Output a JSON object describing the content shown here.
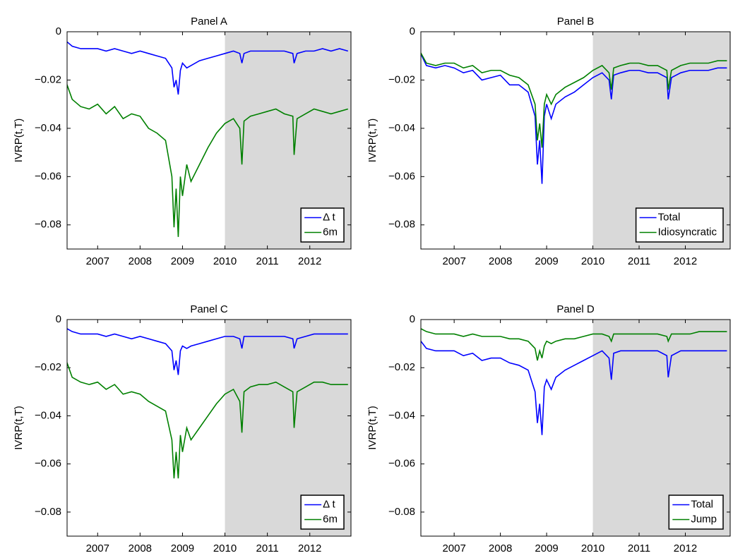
{
  "chart_data": [
    {
      "type": "line",
      "title": "Panel A",
      "ylabel": "IVRP(t,T)",
      "x": [
        2006.2,
        2006.4,
        2006.6,
        2006.8,
        2007.0,
        2007.2,
        2007.4,
        2007.6,
        2007.8,
        2008.0,
        2008.2,
        2008.4,
        2008.6,
        2008.75,
        2008.8,
        2008.85,
        2008.9,
        2008.95,
        2009.0,
        2009.1,
        2009.2,
        2009.4,
        2009.6,
        2009.8,
        2010.0,
        2010.2,
        2010.35,
        2010.4,
        2010.45,
        2010.6,
        2010.8,
        2011.0,
        2011.2,
        2011.4,
        2011.6,
        2011.63,
        2011.7,
        2011.9,
        2012.1,
        2012.3,
        2012.5,
        2012.7,
        2012.9
      ],
      "series": [
        {
          "name": "Δ t",
          "color": "#0000ff",
          "values": [
            -0.003,
            -0.006,
            -0.007,
            -0.007,
            -0.007,
            -0.008,
            -0.007,
            -0.008,
            -0.009,
            -0.008,
            -0.009,
            -0.01,
            -0.011,
            -0.015,
            -0.023,
            -0.02,
            -0.026,
            -0.016,
            -0.013,
            -0.015,
            -0.014,
            -0.012,
            -0.011,
            -0.01,
            -0.009,
            -0.008,
            -0.009,
            -0.013,
            -0.009,
            -0.008,
            -0.008,
            -0.008,
            -0.008,
            -0.008,
            -0.009,
            -0.013,
            -0.009,
            -0.008,
            -0.008,
            -0.007,
            -0.008,
            -0.007,
            -0.008
          ]
        },
        {
          "name": "6m",
          "color": "#008000",
          "values": [
            -0.018,
            -0.028,
            -0.031,
            -0.032,
            -0.03,
            -0.034,
            -0.031,
            -0.036,
            -0.034,
            -0.035,
            -0.04,
            -0.042,
            -0.045,
            -0.06,
            -0.081,
            -0.065,
            -0.085,
            -0.06,
            -0.068,
            -0.055,
            -0.062,
            -0.055,
            -0.048,
            -0.042,
            -0.038,
            -0.036,
            -0.04,
            -0.055,
            -0.037,
            -0.035,
            -0.034,
            -0.033,
            -0.032,
            -0.034,
            -0.035,
            -0.051,
            -0.036,
            -0.034,
            -0.032,
            -0.033,
            -0.034,
            -0.033,
            -0.032
          ]
        }
      ],
      "xlim": [
        2006.28,
        2012.97
      ],
      "ylim": [
        -0.09,
        0
      ],
      "xticks": [
        2007,
        2008,
        2009,
        2010,
        2011,
        2012
      ],
      "yticks": [
        0,
        {
          "value": -0.02,
          "label": "−0.02"
        },
        {
          "value": -0.04,
          "label": "−0.04"
        },
        {
          "value": -0.06,
          "label": "−0.06"
        },
        {
          "value": -0.08,
          "label": "−0.08"
        }
      ],
      "shade_from": 2010,
      "shade_color": "#d9d9d9",
      "legend": "lower right"
    },
    {
      "type": "line",
      "title": "Panel B",
      "ylabel": "IVRP(t,T)",
      "x": [
        2006.2,
        2006.4,
        2006.6,
        2006.8,
        2007.0,
        2007.2,
        2007.4,
        2007.6,
        2007.8,
        2008.0,
        2008.2,
        2008.4,
        2008.6,
        2008.75,
        2008.8,
        2008.85,
        2008.9,
        2008.95,
        2009.0,
        2009.1,
        2009.2,
        2009.4,
        2009.6,
        2009.8,
        2010.0,
        2010.2,
        2010.35,
        2010.4,
        2010.45,
        2010.6,
        2010.8,
        2011.0,
        2011.2,
        2011.4,
        2011.6,
        2011.63,
        2011.7,
        2011.9,
        2012.1,
        2012.3,
        2012.5,
        2012.7,
        2012.9
      ],
      "series": [
        {
          "name": "Total",
          "color": "#0000ff",
          "values": [
            -0.006,
            -0.014,
            -0.015,
            -0.014,
            -0.015,
            -0.017,
            -0.016,
            -0.02,
            -0.019,
            -0.018,
            -0.022,
            -0.022,
            -0.025,
            -0.035,
            -0.055,
            -0.045,
            -0.063,
            -0.035,
            -0.03,
            -0.036,
            -0.03,
            -0.027,
            -0.025,
            -0.022,
            -0.019,
            -0.017,
            -0.02,
            -0.028,
            -0.018,
            -0.017,
            -0.016,
            -0.016,
            -0.017,
            -0.017,
            -0.019,
            -0.028,
            -0.019,
            -0.017,
            -0.016,
            -0.016,
            -0.016,
            -0.015,
            -0.015
          ]
        },
        {
          "name": "Idiosyncratic",
          "color": "#008000",
          "values": [
            -0.006,
            -0.013,
            -0.014,
            -0.013,
            -0.013,
            -0.015,
            -0.014,
            -0.017,
            -0.016,
            -0.016,
            -0.018,
            -0.019,
            -0.022,
            -0.03,
            -0.045,
            -0.038,
            -0.048,
            -0.03,
            -0.026,
            -0.03,
            -0.026,
            -0.023,
            -0.021,
            -0.019,
            -0.016,
            -0.014,
            -0.017,
            -0.024,
            -0.015,
            -0.014,
            -0.013,
            -0.013,
            -0.014,
            -0.014,
            -0.016,
            -0.024,
            -0.016,
            -0.014,
            -0.013,
            -0.013,
            -0.013,
            -0.012,
            -0.012
          ]
        }
      ],
      "xlim": [
        2006.28,
        2012.97
      ],
      "ylim": [
        -0.09,
        0
      ],
      "xticks": [
        2007,
        2008,
        2009,
        2010,
        2011,
        2012
      ],
      "yticks": [
        0,
        {
          "value": -0.02,
          "label": "−0.02"
        },
        {
          "value": -0.04,
          "label": "−0.04"
        },
        {
          "value": -0.06,
          "label": "−0.06"
        },
        {
          "value": -0.08,
          "label": "−0.08"
        }
      ],
      "shade_from": 2010,
      "shade_color": "#d9d9d9",
      "legend": "lower right"
    },
    {
      "type": "line",
      "title": "Panel C",
      "ylabel": "IVRP(t,T)",
      "x": [
        2006.2,
        2006.4,
        2006.6,
        2006.8,
        2007.0,
        2007.2,
        2007.4,
        2007.6,
        2007.8,
        2008.0,
        2008.2,
        2008.4,
        2008.6,
        2008.75,
        2008.8,
        2008.85,
        2008.9,
        2008.95,
        2009.0,
        2009.1,
        2009.2,
        2009.4,
        2009.6,
        2009.8,
        2010.0,
        2010.2,
        2010.35,
        2010.4,
        2010.45,
        2010.6,
        2010.8,
        2011.0,
        2011.2,
        2011.4,
        2011.6,
        2011.63,
        2011.7,
        2011.9,
        2012.1,
        2012.3,
        2012.5,
        2012.7,
        2012.9
      ],
      "series": [
        {
          "name": "Δ t",
          "color": "#0000ff",
          "values": [
            -0.003,
            -0.005,
            -0.006,
            -0.006,
            -0.006,
            -0.007,
            -0.006,
            -0.007,
            -0.008,
            -0.007,
            -0.008,
            -0.009,
            -0.01,
            -0.013,
            -0.021,
            -0.017,
            -0.023,
            -0.013,
            -0.011,
            -0.012,
            -0.011,
            -0.01,
            -0.009,
            -0.008,
            -0.007,
            -0.007,
            -0.008,
            -0.012,
            -0.007,
            -0.007,
            -0.007,
            -0.007,
            -0.007,
            -0.007,
            -0.008,
            -0.012,
            -0.008,
            -0.007,
            -0.006,
            -0.006,
            -0.006,
            -0.006,
            -0.006
          ]
        },
        {
          "name": "6m",
          "color": "#008000",
          "values": [
            -0.014,
            -0.024,
            -0.026,
            -0.027,
            -0.026,
            -0.029,
            -0.027,
            -0.031,
            -0.03,
            -0.031,
            -0.034,
            -0.036,
            -0.038,
            -0.05,
            -0.066,
            -0.055,
            -0.066,
            -0.048,
            -0.055,
            -0.045,
            -0.05,
            -0.045,
            -0.04,
            -0.035,
            -0.031,
            -0.029,
            -0.034,
            -0.047,
            -0.03,
            -0.028,
            -0.027,
            -0.027,
            -0.026,
            -0.028,
            -0.03,
            -0.045,
            -0.03,
            -0.028,
            -0.026,
            -0.026,
            -0.027,
            -0.027,
            -0.027
          ]
        }
      ],
      "xlim": [
        2006.28,
        2012.97
      ],
      "ylim": [
        -0.09,
        0
      ],
      "xticks": [
        2007,
        2008,
        2009,
        2010,
        2011,
        2012
      ],
      "yticks": [
        0,
        {
          "value": -0.02,
          "label": "−0.02"
        },
        {
          "value": -0.04,
          "label": "−0.04"
        },
        {
          "value": -0.06,
          "label": "−0.06"
        },
        {
          "value": -0.08,
          "label": "−0.08"
        }
      ],
      "shade_from": 2010,
      "shade_color": "#d9d9d9",
      "legend": "lower right"
    },
    {
      "type": "line",
      "title": "Panel D",
      "ylabel": "IVRP(t,T)",
      "x": [
        2006.2,
        2006.4,
        2006.6,
        2006.8,
        2007.0,
        2007.2,
        2007.4,
        2007.6,
        2007.8,
        2008.0,
        2008.2,
        2008.4,
        2008.6,
        2008.75,
        2008.8,
        2008.85,
        2008.9,
        2008.95,
        2009.0,
        2009.1,
        2009.2,
        2009.4,
        2009.6,
        2009.8,
        2010.0,
        2010.2,
        2010.35,
        2010.4,
        2010.45,
        2010.6,
        2010.8,
        2011.0,
        2011.2,
        2011.4,
        2011.6,
        2011.63,
        2011.7,
        2011.9,
        2012.1,
        2012.3,
        2012.5,
        2012.7,
        2012.9
      ],
      "series": [
        {
          "name": "Total",
          "color": "#0000ff",
          "values": [
            -0.007,
            -0.012,
            -0.013,
            -0.013,
            -0.013,
            -0.015,
            -0.014,
            -0.017,
            -0.016,
            -0.016,
            -0.018,
            -0.019,
            -0.021,
            -0.03,
            -0.043,
            -0.035,
            -0.048,
            -0.028,
            -0.025,
            -0.029,
            -0.024,
            -0.021,
            -0.019,
            -0.017,
            -0.015,
            -0.013,
            -0.016,
            -0.025,
            -0.014,
            -0.013,
            -0.013,
            -0.013,
            -0.013,
            -0.013,
            -0.015,
            -0.024,
            -0.015,
            -0.013,
            -0.013,
            -0.013,
            -0.013,
            -0.013,
            -0.013
          ]
        },
        {
          "name": "Jump",
          "color": "#008000",
          "values": [
            -0.003,
            -0.005,
            -0.006,
            -0.006,
            -0.006,
            -0.007,
            -0.006,
            -0.007,
            -0.007,
            -0.007,
            -0.008,
            -0.008,
            -0.009,
            -0.012,
            -0.017,
            -0.013,
            -0.016,
            -0.011,
            -0.009,
            -0.01,
            -0.009,
            -0.008,
            -0.008,
            -0.007,
            -0.006,
            -0.006,
            -0.007,
            -0.009,
            -0.006,
            -0.006,
            -0.006,
            -0.006,
            -0.006,
            -0.006,
            -0.007,
            -0.009,
            -0.006,
            -0.006,
            -0.006,
            -0.005,
            -0.005,
            -0.005,
            -0.005
          ]
        }
      ],
      "xlim": [
        2006.28,
        2012.97
      ],
      "ylim": [
        -0.09,
        0
      ],
      "xticks": [
        2007,
        2008,
        2009,
        2010,
        2011,
        2012
      ],
      "yticks": [
        0,
        {
          "value": -0.02,
          "label": "−0.02"
        },
        {
          "value": -0.04,
          "label": "−0.04"
        },
        {
          "value": -0.06,
          "label": "−0.06"
        },
        {
          "value": -0.08,
          "label": "−0.08"
        }
      ],
      "shade_from": 2010,
      "shade_color": "#d9d9d9",
      "legend": "lower right"
    }
  ]
}
